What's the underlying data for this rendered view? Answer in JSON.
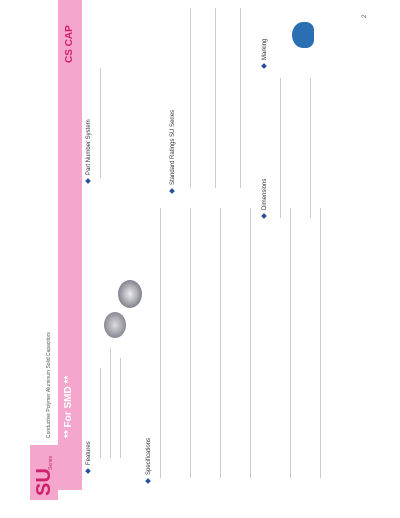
{
  "header": {
    "series": "SU",
    "series_suffix": "Series",
    "subtitle": "** For SMD **",
    "brand": "CS CAP",
    "description": "Conductive Polymer Aluminum Solid Capacitors",
    "page": "2"
  },
  "sections": [
    "Features",
    "Specifications",
    "Part Number System",
    "Standard Ratings SU Series",
    "Dimensions",
    "Marking"
  ]
}
